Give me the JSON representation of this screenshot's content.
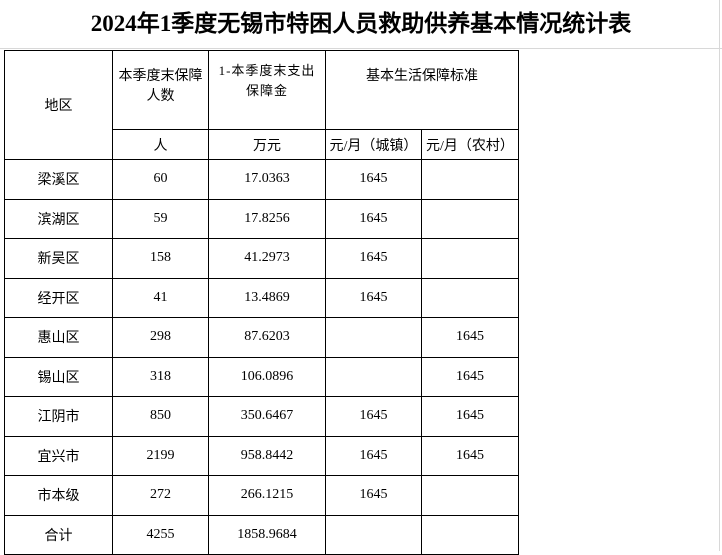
{
  "title": "2024年1季度无锡市特困人员救助供养基本情况统计表",
  "header": {
    "region": "地区",
    "people": "本季度末保障人数",
    "expense": "1-本季度末支出保障金",
    "standard": "基本生活保障标准",
    "people_unit": "人",
    "expense_unit": "万元",
    "urban_unit": "元/月（城镇）",
    "rural_unit": "元/月（农村）"
  },
  "rows": [
    {
      "region": "梁溪区",
      "people": "60",
      "expense": "17.0363",
      "urban": "1645",
      "rural": ""
    },
    {
      "region": "滨湖区",
      "people": "59",
      "expense": "17.8256",
      "urban": "1645",
      "rural": ""
    },
    {
      "region": "新吴区",
      "people": "158",
      "expense": "41.2973",
      "urban": "1645",
      "rural": ""
    },
    {
      "region": "经开区",
      "people": "41",
      "expense": "13.4869",
      "urban": "1645",
      "rural": ""
    },
    {
      "region": "惠山区",
      "people": "298",
      "expense": "87.6203",
      "urban": "",
      "rural": "1645"
    },
    {
      "region": "锡山区",
      "people": "318",
      "expense": "106.0896",
      "urban": "",
      "rural": "1645"
    },
    {
      "region": "江阴市",
      "people": "850",
      "expense": "350.6467",
      "urban": "1645",
      "rural": "1645"
    },
    {
      "region": "宜兴市",
      "people": "2199",
      "expense": "958.8442",
      "urban": "1645",
      "rural": "1645"
    },
    {
      "region": "市本级",
      "people": "272",
      "expense": "266.1215",
      "urban": "1645",
      "rural": ""
    },
    {
      "region": "合计",
      "people": "4255",
      "expense": "1858.9684",
      "urban": "",
      "rural": ""
    }
  ]
}
